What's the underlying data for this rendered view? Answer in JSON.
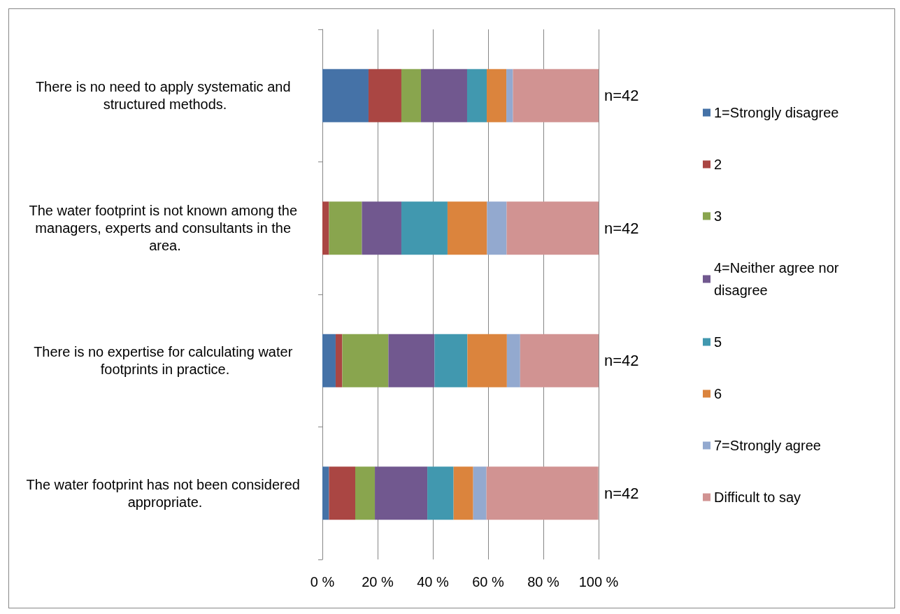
{
  "chart_data": {
    "type": "bar",
    "orientation": "horizontal",
    "stacked": true,
    "categories": [
      "There is no need to apply systematic and structured methods.",
      "The water footprint is not known among the managers, experts and consultants in the area.",
      "There is no expertise for calculating water footprints in practice.",
      "The water footprint has not been considered appropriate."
    ],
    "series": [
      {
        "name": "1=Strongly disagree",
        "color": "#4572a7",
        "values": [
          16.7,
          0,
          4.8,
          2.4
        ]
      },
      {
        "name": "2",
        "color": "#aa4643",
        "values": [
          11.9,
          2.4,
          2.4,
          9.5
        ]
      },
      {
        "name": "3",
        "color": "#89a54e",
        "values": [
          7.1,
          11.9,
          16.7,
          7.1
        ]
      },
      {
        "name": "4=Neither agree nor disagree",
        "color": "#71588f",
        "values": [
          16.7,
          14.3,
          16.7,
          19.0
        ]
      },
      {
        "name": "5",
        "color": "#4198af",
        "values": [
          7.1,
          16.7,
          11.9,
          9.5
        ]
      },
      {
        "name": "6",
        "color": "#db843d",
        "values": [
          7.1,
          14.3,
          14.3,
          7.1
        ]
      },
      {
        "name": "7=Strongly agree",
        "color": "#93a9cf",
        "values": [
          2.4,
          7.1,
          4.8,
          4.8
        ]
      },
      {
        "name": "Difficult to say",
        "color": "#d19392",
        "values": [
          31.0,
          33.3,
          28.6,
          40.5
        ]
      }
    ],
    "xlim": [
      0,
      100
    ],
    "xticks": [
      {
        "value": 0,
        "label": "0 %"
      },
      {
        "value": 20,
        "label": "20 %"
      },
      {
        "value": 40,
        "label": "40 %"
      },
      {
        "value": 60,
        "label": "60 %"
      },
      {
        "value": 80,
        "label": "80 %"
      },
      {
        "value": 100,
        "label": "100 %"
      }
    ],
    "grid": "x",
    "legend": "right",
    "annotations": [
      "n=42",
      "n=42",
      "n=42",
      "n=42"
    ]
  }
}
